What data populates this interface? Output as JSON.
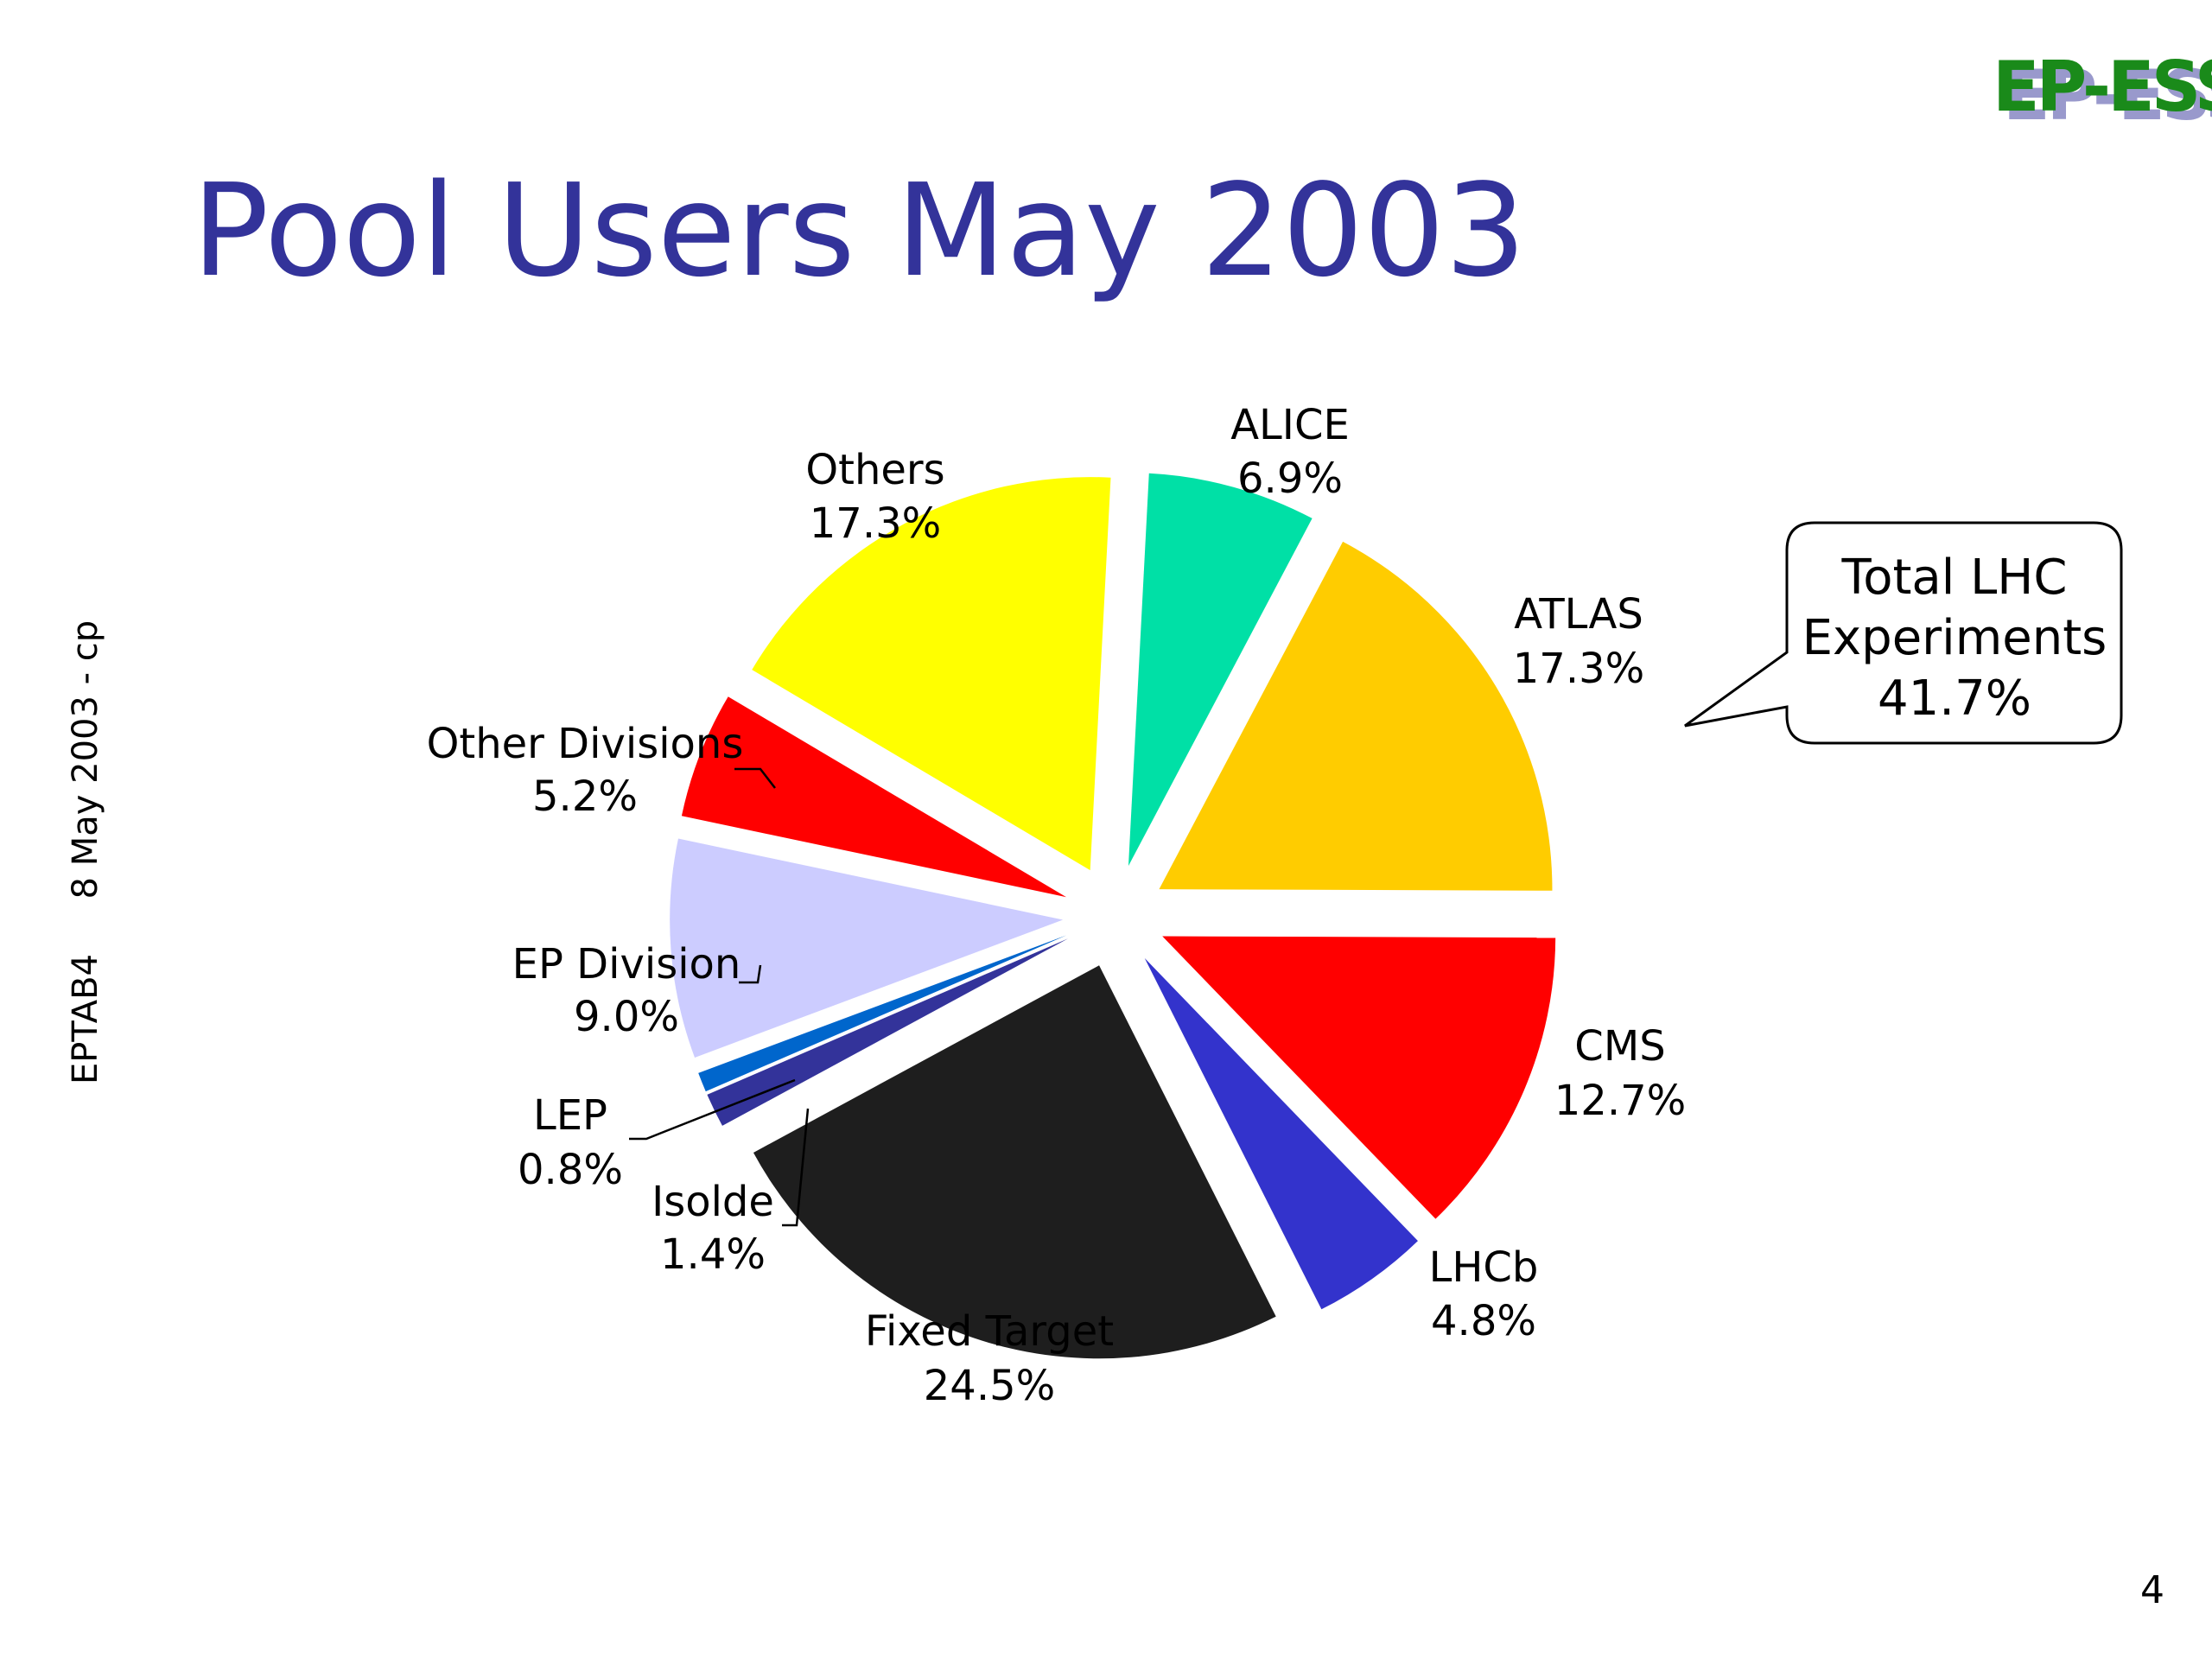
{
  "slide": {
    "title": "Pool Users May 2003",
    "logo": {
      "text": "EP-ESS",
      "color": "#1a8a1a",
      "shadow_color": "#9999cc"
    },
    "side_text": "EPTAB4     8 May 2003 - cp",
    "page_number": "4",
    "callout": {
      "lines": [
        "Total LHC",
        "Experiments",
        "41.7%"
      ]
    }
  },
  "chart_data": {
    "type": "pie",
    "title": "Pool Users May 2003",
    "exploded": true,
    "slices": [
      {
        "name": "ALICE",
        "value": 6.9,
        "label": "6.9%",
        "color": "#00e0a6"
      },
      {
        "name": "ATLAS",
        "value": 17.3,
        "label": "17.3%",
        "color": "#ffcc00"
      },
      {
        "name": "CMS",
        "value": 12.7,
        "label": "12.7%",
        "color": "#ff0000"
      },
      {
        "name": "LHCb",
        "value": 4.8,
        "label": "4.8%",
        "color": "#3333cc"
      },
      {
        "name": "Fixed Target",
        "value": 24.5,
        "label": "24.5%",
        "color": "#1e1e1e"
      },
      {
        "name": "Isolde",
        "value": 1.4,
        "label": "1.4%",
        "color": "#33339a"
      },
      {
        "name": "LEP",
        "value": 0.8,
        "label": "0.8%",
        "color": "#0066cc"
      },
      {
        "name": "EP Division",
        "value": 9.0,
        "label": "9.0%",
        "color": "#ccccff"
      },
      {
        "name": "Other Divisions",
        "value": 5.2,
        "label": "5.2%",
        "color": "#ff0000"
      },
      {
        "name": "Others",
        "value": 17.3,
        "label": "17.3%",
        "color": "#ffff00"
      }
    ]
  }
}
